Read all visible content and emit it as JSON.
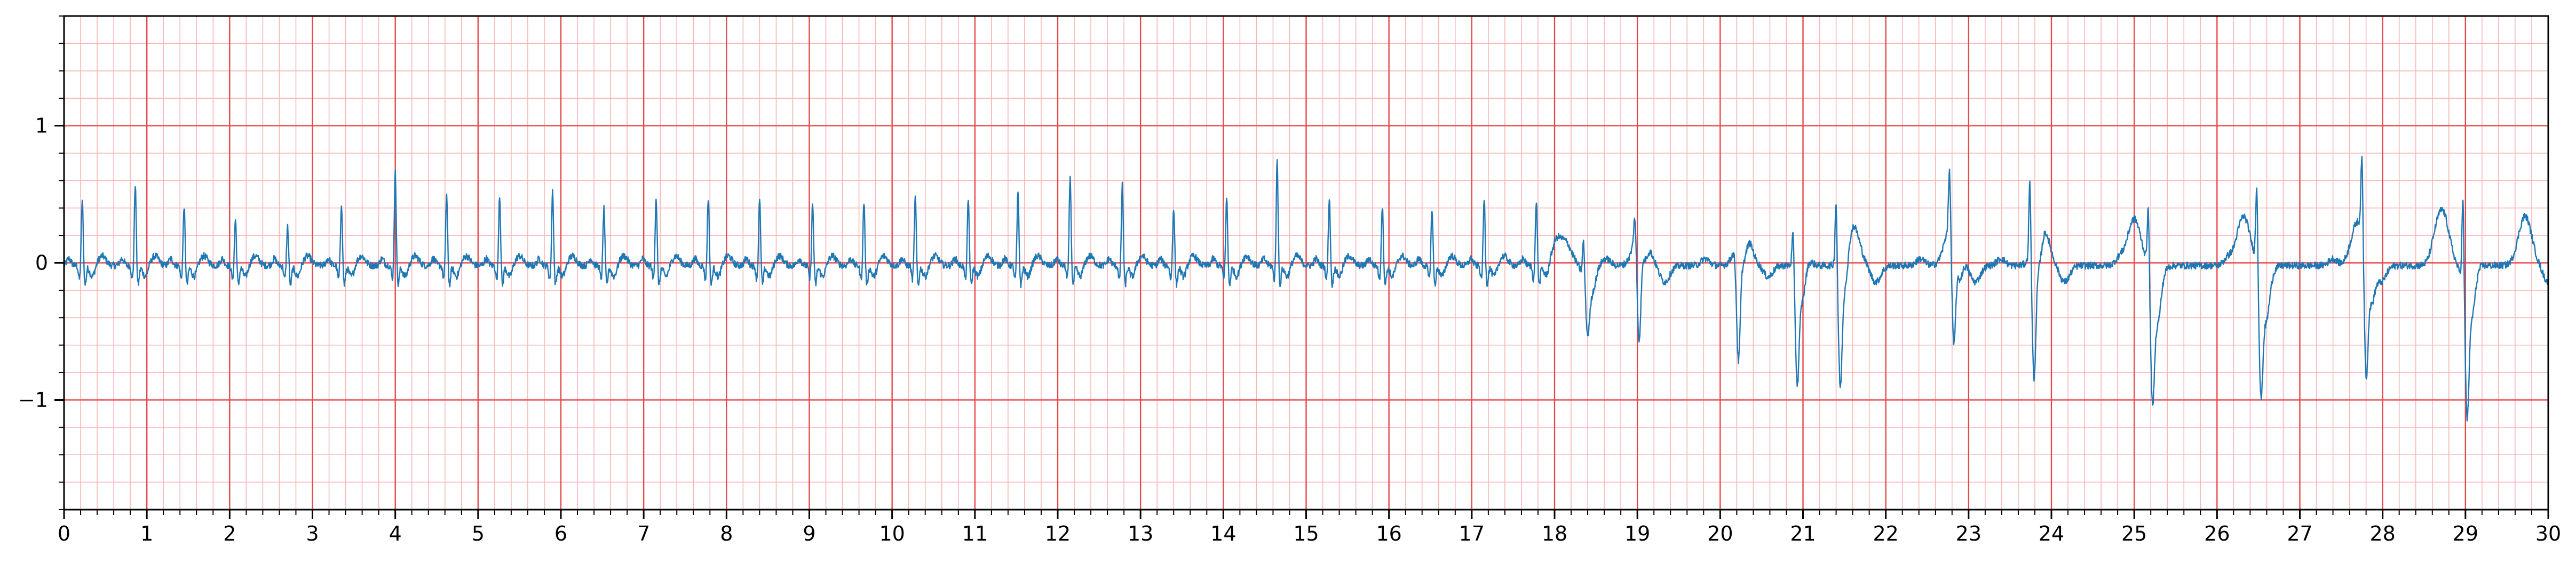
{
  "chart_data": {
    "type": "line",
    "title": "",
    "xlabel": "",
    "ylabel": "",
    "xlim": [
      0,
      30
    ],
    "ylim": [
      -1.8,
      1.8
    ],
    "x_major_ticks": [
      0,
      1,
      2,
      3,
      4,
      5,
      6,
      7,
      8,
      9,
      10,
      11,
      12,
      13,
      14,
      15,
      16,
      17,
      18,
      19,
      20,
      21,
      22,
      23,
      24,
      25,
      26,
      27,
      28,
      29,
      30
    ],
    "x_tick_labels": [
      "0",
      "1",
      "2",
      "3",
      "4",
      "5",
      "6",
      "7",
      "8",
      "9",
      "10",
      "11",
      "12",
      "13",
      "14",
      "15",
      "16",
      "17",
      "18",
      "19",
      "20",
      "21",
      "22",
      "23",
      "24",
      "25",
      "26",
      "27",
      "28",
      "29",
      "30"
    ],
    "x_minor_step": 0.2,
    "y_major_ticks": [
      -1,
      0,
      1
    ],
    "y_tick_labels": [
      "−1",
      "0",
      "1"
    ],
    "y_minor_step": 0.2,
    "grid": true,
    "legend": "none",
    "colors": {
      "signal": "#1f77b4",
      "major_grid": "#e8474a",
      "minor_grid": "#f7b6b6",
      "axes": "#000000"
    },
    "series": [
      {
        "beats_rhythm_1": {
          "r_times": [
            0.22,
            0.86,
            1.45,
            2.07,
            2.7,
            3.35,
            4.0,
            4.62,
            5.26,
            5.9,
            6.52,
            7.15,
            7.78,
            8.4,
            9.04,
            9.66,
            10.28,
            10.92,
            11.52,
            12.15,
            12.78,
            13.4,
            14.04,
            14.65,
            15.28,
            15.92,
            16.52,
            17.15,
            17.78
          ],
          "r_amps": [
            0.48,
            0.6,
            0.44,
            0.34,
            0.29,
            0.46,
            0.68,
            0.52,
            0.52,
            0.55,
            0.42,
            0.5,
            0.5,
            0.48,
            0.45,
            0.47,
            0.5,
            0.48,
            0.53,
            0.65,
            0.59,
            0.43,
            0.5,
            0.76,
            0.5,
            0.44,
            0.42,
            0.49,
            0.48
          ]
        },
        "beats_rhythm_2": {
          "r_times": [
            18.35,
            18.97,
            20.17,
            20.88,
            21.4,
            22.77,
            23.74,
            25.17,
            26.48,
            27.75,
            28.97
          ],
          "r_amps": [
            0.28,
            0.2,
            0.0,
            0.28,
            0.5,
            0.44,
            0.6,
            0.46,
            0.6,
            0.58,
            0.64
          ],
          "s_amps": [
            -0.35,
            -0.78,
            -0.85,
            -0.78,
            -0.84,
            -0.8,
            -0.9,
            -0.86,
            -0.82,
            -0.85,
            -0.9
          ],
          "t_amps": [
            0.18,
            0.35,
            0.33,
            0.3,
            0.33,
            0.34,
            0.34,
            0.36,
            0.32,
            0.4,
            0.36
          ],
          "t_times": [
            18.12,
            19.05,
            20.28,
            21.6,
            22.8,
            23.88,
            25.0,
            26.32,
            27.7,
            28.72,
            29.72
          ]
        }
      }
    ]
  }
}
